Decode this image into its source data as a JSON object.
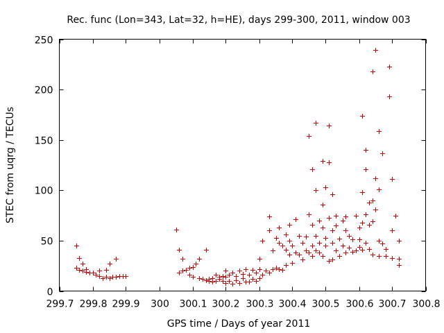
{
  "chart_data": {
    "type": "scatter",
    "title": "Rec. func (Lon=343, Lat=32, h=HE), days 299-300, 2011, window 003",
    "xlabel": "GPS time / Days of year 2011",
    "ylabel": "STEC from uqrg / TECUs",
    "xlim": [
      299.7,
      300.8
    ],
    "ylim": [
      0,
      250
    ],
    "xticks": [
      299.7,
      299.8,
      299.9,
      300,
      300.1,
      300.2,
      300.3,
      300.4,
      300.5,
      300.6,
      300.7,
      300.8
    ],
    "xtick_labels": [
      "299.7",
      "299.8",
      "299.9",
      "300",
      "300.1",
      "300.2",
      "300.3",
      "300.4",
      "300.5",
      "300.6",
      "300.7",
      "300.8"
    ],
    "yticks": [
      0,
      50,
      100,
      150,
      200,
      250
    ],
    "ytick_labels": [
      "0",
      "50",
      "100",
      "150",
      "200",
      "250"
    ],
    "marker": "+",
    "color": "#cc0000",
    "grid": false,
    "series": [
      {
        "name": "STEC",
        "points": [
          [
            299.75,
            45
          ],
          [
            299.75,
            23
          ],
          [
            299.76,
            33
          ],
          [
            299.76,
            21
          ],
          [
            299.77,
            27
          ],
          [
            299.77,
            20
          ],
          [
            299.78,
            22
          ],
          [
            299.78,
            19
          ],
          [
            299.79,
            18
          ],
          [
            299.8,
            18
          ],
          [
            299.81,
            16
          ],
          [
            299.82,
            20
          ],
          [
            299.82,
            15
          ],
          [
            299.83,
            13
          ],
          [
            299.84,
            21
          ],
          [
            299.84,
            14
          ],
          [
            299.85,
            27
          ],
          [
            299.85,
            13
          ],
          [
            299.86,
            14
          ],
          [
            299.87,
            32
          ],
          [
            299.87,
            14
          ],
          [
            299.88,
            15
          ],
          [
            299.89,
            15
          ],
          [
            299.9,
            15
          ],
          [
            300.05,
            61
          ],
          [
            300.06,
            41
          ],
          [
            300.06,
            18
          ],
          [
            300.07,
            32
          ],
          [
            300.07,
            20
          ],
          [
            300.08,
            21
          ],
          [
            300.09,
            23
          ],
          [
            300.09,
            16
          ],
          [
            300.1,
            24
          ],
          [
            300.1,
            14
          ],
          [
            300.11,
            27
          ],
          [
            300.12,
            32
          ],
          [
            300.12,
            13
          ],
          [
            300.13,
            12
          ],
          [
            300.14,
            41
          ],
          [
            300.14,
            11
          ],
          [
            300.15,
            12
          ],
          [
            300.15,
            10
          ],
          [
            300.16,
            9
          ],
          [
            300.16,
            13
          ],
          [
            300.17,
            16
          ],
          [
            300.17,
            10
          ],
          [
            300.18,
            12
          ],
          [
            300.18,
            14
          ],
          [
            300.19,
            15
          ],
          [
            300.19,
            10
          ],
          [
            300.2,
            20
          ],
          [
            300.2,
            14
          ],
          [
            300.2,
            8
          ],
          [
            300.21,
            16
          ],
          [
            300.21,
            10
          ],
          [
            300.22,
            18
          ],
          [
            300.22,
            7
          ],
          [
            300.23,
            15
          ],
          [
            300.23,
            11
          ],
          [
            300.24,
            20
          ],
          [
            300.24,
            8
          ],
          [
            300.25,
            17
          ],
          [
            300.25,
            13
          ],
          [
            300.26,
            22
          ],
          [
            300.26,
            9
          ],
          [
            300.27,
            16
          ],
          [
            300.27,
            9
          ],
          [
            300.28,
            21
          ],
          [
            300.28,
            12
          ],
          [
            300.29,
            18
          ],
          [
            300.29,
            10
          ],
          [
            300.3,
            22
          ],
          [
            300.3,
            32
          ],
          [
            300.3,
            13
          ],
          [
            300.31,
            50
          ],
          [
            300.31,
            16
          ],
          [
            300.32,
            20
          ],
          [
            300.33,
            74
          ],
          [
            300.33,
            60
          ],
          [
            300.33,
            18
          ],
          [
            300.34,
            40
          ],
          [
            300.34,
            22
          ],
          [
            300.35,
            53
          ],
          [
            300.35,
            23
          ],
          [
            300.36,
            63
          ],
          [
            300.36,
            48
          ],
          [
            300.36,
            22
          ],
          [
            300.37,
            45
          ],
          [
            300.37,
            21
          ],
          [
            300.38,
            56
          ],
          [
            300.38,
            41
          ],
          [
            300.38,
            26
          ],
          [
            300.39,
            66
          ],
          [
            300.39,
            50
          ],
          [
            300.39,
            36
          ],
          [
            300.4,
            45
          ],
          [
            300.4,
            28
          ],
          [
            300.41,
            71
          ],
          [
            300.41,
            38
          ],
          [
            300.42,
            55
          ],
          [
            300.42,
            36
          ],
          [
            300.43,
            48
          ],
          [
            300.43,
            31
          ],
          [
            300.44,
            54
          ],
          [
            300.44,
            40
          ],
          [
            300.45,
            154
          ],
          [
            300.45,
            76
          ],
          [
            300.45,
            38
          ],
          [
            300.46,
            66
          ],
          [
            300.46,
            45
          ],
          [
            300.46,
            35
          ],
          [
            300.46,
            121
          ],
          [
            300.47,
            100
          ],
          [
            300.47,
            55
          ],
          [
            300.47,
            40
          ],
          [
            300.47,
            167
          ],
          [
            300.48,
            70
          ],
          [
            300.48,
            48
          ],
          [
            300.48,
            38
          ],
          [
            300.49,
            129
          ],
          [
            300.49,
            86
          ],
          [
            300.49,
            63
          ],
          [
            300.49,
            35
          ],
          [
            300.5,
            103
          ],
          [
            300.5,
            53
          ],
          [
            300.5,
            45
          ],
          [
            300.51,
            164
          ],
          [
            300.51,
            128
          ],
          [
            300.51,
            73
          ],
          [
            300.51,
            30
          ],
          [
            300.52,
            96
          ],
          [
            300.52,
            60
          ],
          [
            300.52,
            48
          ],
          [
            300.52,
            31
          ],
          [
            300.53,
            75
          ],
          [
            300.53,
            65
          ],
          [
            300.53,
            40
          ],
          [
            300.54,
            52
          ],
          [
            300.54,
            35
          ],
          [
            300.55,
            70
          ],
          [
            300.55,
            45
          ],
          [
            300.56,
            74
          ],
          [
            300.56,
            60
          ],
          [
            300.56,
            38
          ],
          [
            300.57,
            55
          ],
          [
            300.57,
            43
          ],
          [
            300.58,
            51
          ],
          [
            300.58,
            39
          ],
          [
            300.59,
            75
          ],
          [
            300.59,
            40
          ],
          [
            300.6,
            63
          ],
          [
            300.6,
            51
          ],
          [
            300.6,
            44
          ],
          [
            300.61,
            174
          ],
          [
            300.61,
            98
          ],
          [
            300.61,
            68
          ],
          [
            300.61,
            41
          ],
          [
            300.62,
            140
          ],
          [
            300.62,
            121
          ],
          [
            300.62,
            76
          ],
          [
            300.62,
            48
          ],
          [
            300.63,
            88
          ],
          [
            300.63,
            66
          ],
          [
            300.63,
            42
          ],
          [
            300.64,
            218
          ],
          [
            300.64,
            90
          ],
          [
            300.64,
            69
          ],
          [
            300.64,
            36
          ],
          [
            300.65,
            239
          ],
          [
            300.65,
            112
          ],
          [
            300.65,
            81
          ],
          [
            300.66,
            159
          ],
          [
            300.66,
            101
          ],
          [
            300.66,
            50
          ],
          [
            300.66,
            35
          ],
          [
            300.67,
            137
          ],
          [
            300.67,
            47
          ],
          [
            300.68,
            42
          ],
          [
            300.68,
            35
          ],
          [
            300.69,
            223
          ],
          [
            300.69,
            193
          ],
          [
            300.7,
            111
          ],
          [
            300.7,
            60
          ],
          [
            300.7,
            33
          ],
          [
            300.71,
            75
          ],
          [
            300.72,
            50
          ],
          [
            300.72,
            32
          ],
          [
            300.72,
            26
          ]
        ]
      }
    ]
  }
}
